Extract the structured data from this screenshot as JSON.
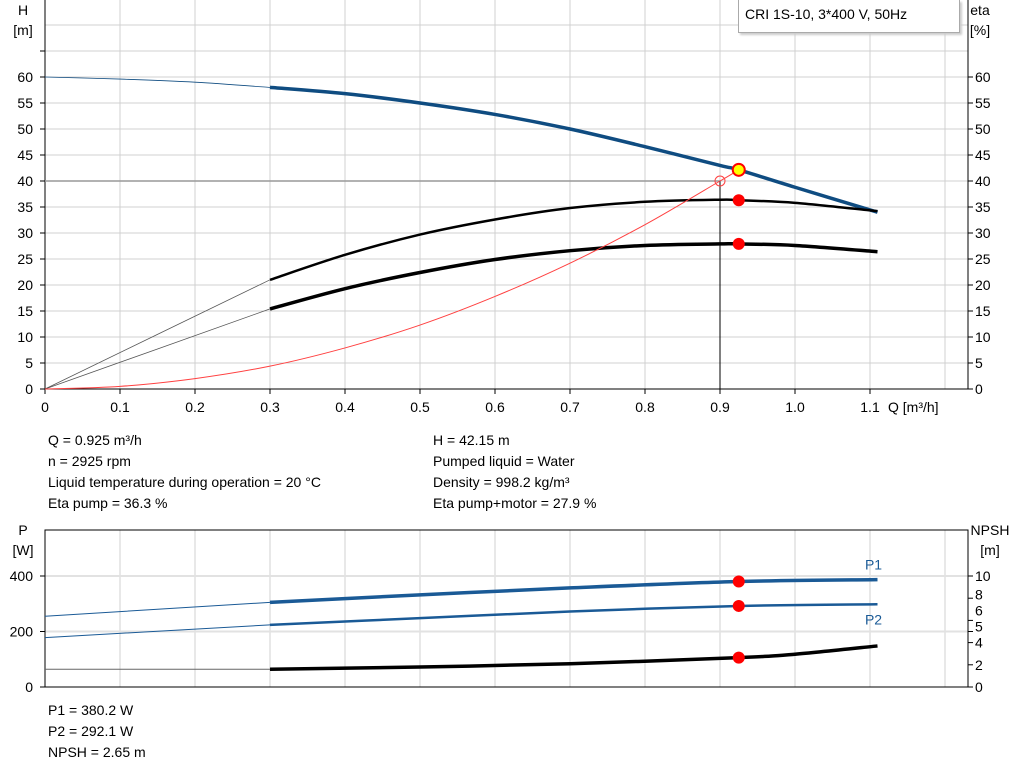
{
  "legend": "CRI 1S-10, 3*400 V, 50Hz",
  "colors": {
    "head": "#0f4c81",
    "eta": "#000000",
    "system": "#ff4040",
    "point": "#ff0000",
    "duty_point": "#ffff00",
    "power": "#1a5a96",
    "npsh": "#000000",
    "grid": "#d0d0d0"
  },
  "info_top_left": [
    "Q = 0.925 m³/h",
    "n = 2925 rpm",
    "Liquid temperature during operation = 20 °C",
    "Eta pump = 36.3 %"
  ],
  "info_top_right": [
    "H = 42.15 m",
    "Pumped liquid = Water",
    "Density = 998.2 kg/m³",
    "Eta pump+motor = 27.9 %"
  ],
  "info_bottom": [
    "P1 = 380.2 W",
    "P2 = 292.1 W",
    "NPSH = 2.65 m"
  ],
  "chart_data": [
    {
      "type": "line",
      "xlabel": "Q [m³/h]",
      "ylabel": "H [m]",
      "ylabel_right": "eta [%]",
      "xlim": [
        0,
        1.2
      ],
      "ylim": [
        0,
        75
      ],
      "xticks": [
        "0",
        "0.1",
        "0.2",
        "0.3",
        "0.4",
        "0.5",
        "0.6",
        "0.7",
        "0.8",
        "0.9",
        "1.0",
        "1.1"
      ],
      "yticks": [
        0,
        5,
        10,
        15,
        20,
        25,
        30,
        35,
        40,
        45,
        50,
        55,
        60
      ],
      "grid": true,
      "series": [
        {
          "key": "head",
          "x": [
            0,
            0.1,
            0.2,
            0.3,
            0.4,
            0.5,
            0.6,
            0.7,
            0.8,
            0.9,
            0.925,
            1.0,
            1.11
          ],
          "y": [
            60,
            59.6,
            59,
            58,
            56.8,
            55,
            52.8,
            50,
            46.6,
            43,
            42.15,
            38.8,
            34
          ],
          "thick_from": 0.3
        },
        {
          "key": "eta_pump",
          "x": [
            0,
            0.3,
            0.4,
            0.5,
            0.6,
            0.7,
            0.8,
            0.9,
            0.925,
            1.0,
            1.11
          ],
          "y": [
            0,
            21,
            25.8,
            29.7,
            32.6,
            34.8,
            36,
            36.4,
            36.3,
            35.8,
            34.2
          ],
          "thick_from": 0.3
        },
        {
          "key": "eta_total",
          "x": [
            0,
            0.3,
            0.4,
            0.5,
            0.6,
            0.7,
            0.8,
            0.9,
            0.925,
            1.0,
            1.11
          ],
          "y": [
            0,
            15.4,
            19.3,
            22.4,
            24.9,
            26.6,
            27.6,
            27.9,
            27.9,
            27.6,
            26.4
          ],
          "thick_from": 0.3
        },
        {
          "key": "system",
          "x": [
            0,
            0.1,
            0.2,
            0.3,
            0.4,
            0.5,
            0.6,
            0.7,
            0.8,
            0.9,
            0.925
          ],
          "y": [
            0,
            0.5,
            2,
            4.4,
            7.9,
            12.3,
            17.8,
            24.2,
            31.6,
            40,
            42.15
          ]
        }
      ],
      "requested_point": {
        "x": 0.9,
        "y": 40
      },
      "duty_points": [
        {
          "x": 0.925,
          "y": 42.15,
          "kind": "duty"
        },
        {
          "x": 0.925,
          "y": 36.3
        },
        {
          "x": 0.925,
          "y": 27.9
        }
      ]
    },
    {
      "type": "line",
      "ylabel": "P [W]",
      "ylabel_right": "NPSH [m]",
      "xlim": [
        0,
        1.2
      ],
      "ylim": [
        0,
        560
      ],
      "yticks": [
        0,
        200,
        400
      ],
      "yticks_right": [
        0,
        2,
        4,
        5,
        6,
        8,
        10
      ],
      "ylim_right": [
        0,
        14
      ],
      "grid": true,
      "series": [
        {
          "name": "P1",
          "key": "p1",
          "x": [
            0,
            0.3,
            0.5,
            0.7,
            0.925,
            1.11
          ],
          "y": [
            255,
            305,
            332,
            357,
            380.2,
            387
          ],
          "thick_from": 0.3
        },
        {
          "name": "P2",
          "key": "p2",
          "x": [
            0,
            0.3,
            0.5,
            0.7,
            0.925,
            1.11
          ],
          "y": [
            178,
            224,
            248,
            272,
            292.1,
            298
          ],
          "thick_from": 0.3
        },
        {
          "key": "npsh",
          "axis": "right",
          "x": [
            0,
            0.3,
            0.5,
            0.7,
            0.925,
            1.0,
            1.11
          ],
          "y": [
            1.6,
            1.6,
            1.8,
            2.1,
            2.65,
            2.95,
            3.7
          ],
          "thick_from": 0.3
        }
      ],
      "duty_points": [
        {
          "x": 0.925,
          "y": 380.2
        },
        {
          "x": 0.925,
          "y": 292.1
        },
        {
          "x": 0.925,
          "y": 2.65,
          "axis": "right"
        }
      ]
    }
  ]
}
